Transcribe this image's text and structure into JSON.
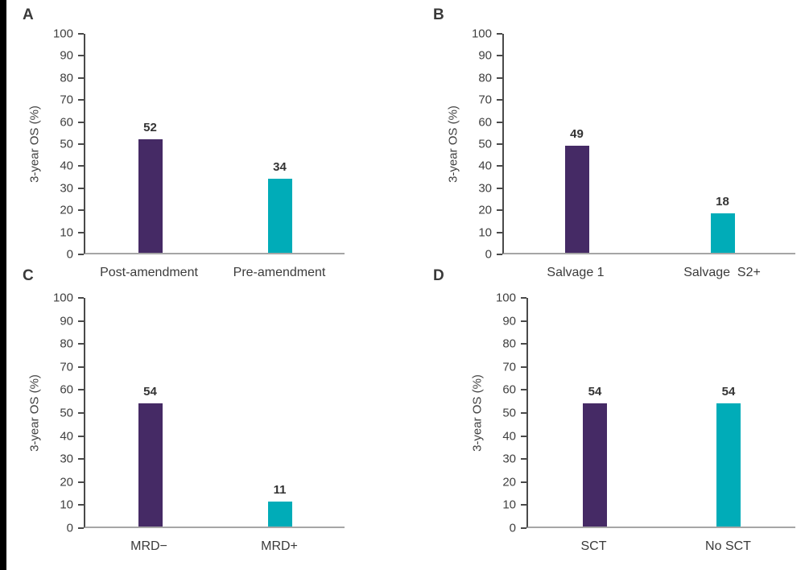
{
  "page": {
    "background": "#ffffff",
    "left_edge_bar_color": "#000000"
  },
  "chart_data": [
    {
      "type": "bar",
      "panel_label": "A",
      "categories": [
        "Post-amendment",
        "Pre-amendment"
      ],
      "values": [
        52,
        34
      ],
      "bar_colors": [
        "#452a65",
        "#00acb8"
      ],
      "ylabel": "3-year OS (%)",
      "ylim": [
        0,
        100
      ],
      "ytick_step": 10,
      "grid": false,
      "legend": false,
      "value_labels": [
        52,
        34
      ]
    },
    {
      "type": "bar",
      "panel_label": "B",
      "categories": [
        "Salvage 1",
        "Salvage  S2+"
      ],
      "values": [
        49,
        18
      ],
      "bar_colors": [
        "#452a65",
        "#00acb8"
      ],
      "ylabel": "3-year OS (%)",
      "ylim": [
        0,
        100
      ],
      "ytick_step": 10,
      "grid": false,
      "legend": false,
      "value_labels": [
        49,
        18
      ]
    },
    {
      "type": "bar",
      "panel_label": "C",
      "categories": [
        "MRD−",
        "MRD+"
      ],
      "values": [
        54,
        11
      ],
      "bar_colors": [
        "#452a65",
        "#00acb8"
      ],
      "ylabel": "3-year OS (%)",
      "ylim": [
        0,
        100
      ],
      "ytick_step": 10,
      "grid": false,
      "legend": false,
      "value_labels": [
        54,
        11
      ]
    },
    {
      "type": "bar",
      "panel_label": "D",
      "categories": [
        "SCT",
        "No SCT"
      ],
      "values": [
        54,
        54
      ],
      "bar_colors": [
        "#452a65",
        "#00acb8"
      ],
      "ylabel": "3-year OS (%)",
      "ylim": [
        0,
        100
      ],
      "ytick_step": 10,
      "grid": false,
      "legend": false,
      "value_labels": [
        54,
        54
      ]
    }
  ]
}
